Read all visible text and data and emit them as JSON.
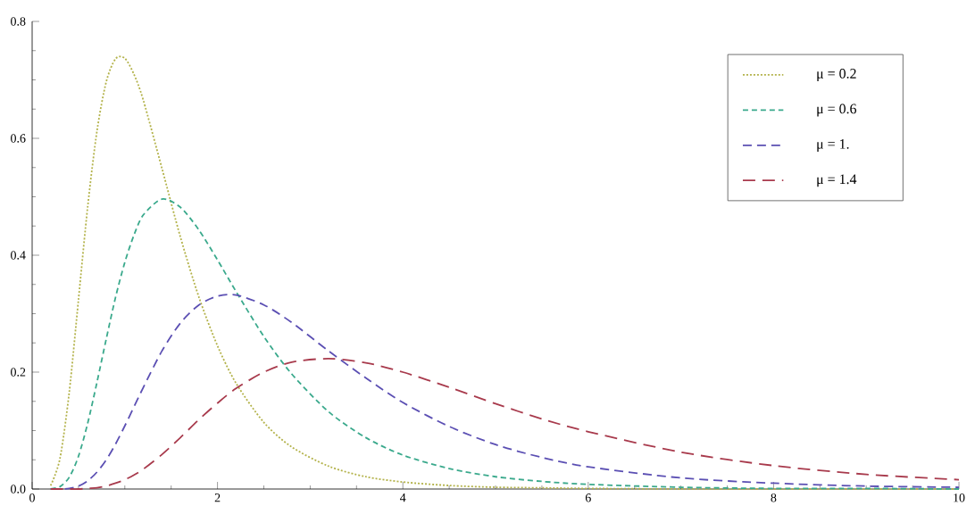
{
  "chart_data": {
    "type": "line",
    "x": [
      0.2,
      0.3,
      0.4,
      0.5,
      0.6,
      0.7,
      0.8,
      0.9,
      1.0,
      1.1,
      1.2,
      1.4,
      1.6,
      1.8,
      2.0,
      2.2,
      2.5,
      2.8,
      3.2,
      3.6,
      4,
      4.5,
      5,
      5.5,
      6,
      7,
      8,
      9,
      10
    ],
    "series": [
      {
        "name": "μ = 0.2",
        "color": "#b3b24a",
        "line_style": "dotted",
        "values": [
          0.006,
          0.052,
          0.165,
          0.324,
          0.484,
          0.613,
          0.697,
          0.736,
          0.737,
          0.709,
          0.665,
          0.549,
          0.431,
          0.328,
          0.245,
          0.181,
          0.114,
          0.072,
          0.039,
          0.021,
          0.012,
          0.006,
          0.003,
          0.002,
          0.001,
          0,
          0,
          0,
          0
        ]
      },
      {
        "name": "μ = 0.6",
        "color": "#3aa98c",
        "line_style": "dashed",
        "values": [
          0,
          0.004,
          0.02,
          0.056,
          0.113,
          0.183,
          0.257,
          0.328,
          0.388,
          0.435,
          0.469,
          0.496,
          0.482,
          0.443,
          0.392,
          0.338,
          0.261,
          0.197,
          0.132,
          0.088,
          0.058,
          0.035,
          0.021,
          0.013,
          0.008,
          0.003,
          0.001,
          0.001,
          0
        ]
      },
      {
        "name": "μ = 1.",
        "color": "#5b4fb3",
        "line_style": "dashed",
        "values": [
          0,
          0,
          0.001,
          0.005,
          0.014,
          0.029,
          0.05,
          0.077,
          0.108,
          0.141,
          0.174,
          0.236,
          0.284,
          0.315,
          0.33,
          0.332,
          0.315,
          0.285,
          0.236,
          0.19,
          0.148,
          0.107,
          0.076,
          0.054,
          0.038,
          0.019,
          0.01,
          0.005,
          0.003
        ]
      },
      {
        "name": "μ = 1.4",
        "color": "#a83a4c",
        "line_style": "dashed",
        "values": [
          0,
          0,
          0,
          0,
          0.001,
          0.002,
          0.005,
          0.01,
          0.016,
          0.024,
          0.034,
          0.059,
          0.088,
          0.119,
          0.147,
          0.172,
          0.2,
          0.217,
          0.223,
          0.216,
          0.2,
          0.174,
          0.146,
          0.12,
          0.098,
          0.063,
          0.04,
          0.025,
          0.016
        ]
      }
    ],
    "xlim": [
      0,
      10
    ],
    "ylim": [
      0,
      0.8
    ],
    "xticks": [
      0,
      2,
      4,
      6,
      8,
      10
    ],
    "yticks": [
      {
        "value": 0,
        "label": "0.0"
      },
      0.2,
      0.4,
      0.6,
      0.8
    ],
    "legend": "top right",
    "grid": false
  }
}
